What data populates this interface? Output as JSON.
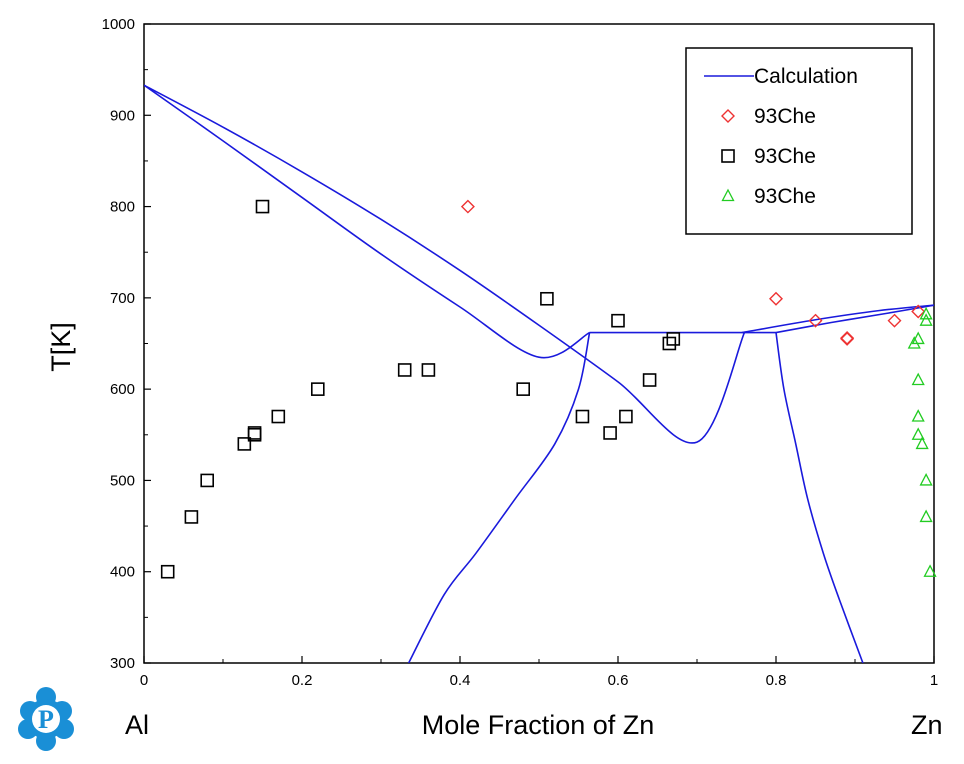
{
  "chart_data": {
    "type": "scatter",
    "xlabel": "Mole Fraction of Zn",
    "ylabel": "T[K]",
    "xlim": [
      0,
      1
    ],
    "ylim": [
      300,
      1000
    ],
    "xticks": [
      "0",
      "0.2",
      "0.4",
      "0.6",
      "0.8",
      "1"
    ],
    "yticks": [
      "300",
      "400",
      "500",
      "600",
      "700",
      "800",
      "900",
      "1000"
    ],
    "left_end_label": "Al",
    "right_end_label": "Zn",
    "grid": false,
    "legend_position": "top-right",
    "legend": [
      {
        "label": "Calculation",
        "marker": "line",
        "color": "#1a1adc"
      },
      {
        "label": "93Che",
        "marker": "diamond",
        "color": "#ee3333"
      },
      {
        "label": "93Che",
        "marker": "square",
        "color": "#000000"
      },
      {
        "label": "93Che",
        "marker": "triangle",
        "color": "#22cc22"
      }
    ],
    "series": [
      {
        "name": "Calculation",
        "kind": "line",
        "color": "#1a1adc",
        "curves": [
          [
            [
              0,
              933
            ],
            [
              0.1,
              887
            ],
            [
              0.2,
              838
            ],
            [
              0.3,
              786
            ],
            [
              0.4,
              730
            ],
            [
              0.5,
              670
            ],
            [
              0.6,
              608
            ],
            [
              0.7,
              542
            ],
            [
              0.76,
              662
            ]
          ],
          [
            [
              0,
              933
            ],
            [
              0.1,
              872
            ],
            [
              0.2,
              810
            ],
            [
              0.3,
              748
            ],
            [
              0.4,
              690
            ],
            [
              0.5,
              635
            ],
            [
              0.564,
              662
            ]
          ],
          [
            [
              0.564,
              662
            ],
            [
              0.757,
              662
            ],
            [
              0.8,
              662
            ]
          ],
          [
            [
              0.757,
              662
            ],
            [
              0.85,
              676
            ],
            [
              0.93,
              686
            ],
            [
              1,
              692
            ]
          ],
          [
            [
              0.8,
              662
            ],
            [
              0.87,
              673
            ],
            [
              0.94,
              683
            ],
            [
              1,
              692
            ]
          ],
          [
            [
              0.564,
              662
            ],
            [
              0.55,
              600
            ],
            [
              0.52,
              540
            ],
            [
              0.47,
              480
            ],
            [
              0.42,
              420
            ],
            [
              0.38,
              375
            ],
            [
              0.335,
              300
            ]
          ],
          [
            [
              0.8,
              662
            ],
            [
              0.81,
              600
            ],
            [
              0.825,
              540
            ],
            [
              0.84,
              480
            ],
            [
              0.86,
              420
            ],
            [
              0.88,
              370
            ],
            [
              0.91,
              300
            ]
          ]
        ]
      },
      {
        "name": "93Che",
        "kind": "points",
        "marker": "diamond",
        "color": "#ee3333",
        "points": [
          [
            0.41,
            800
          ],
          [
            0.8,
            699
          ],
          [
            0.85,
            675
          ],
          [
            0.89,
            655
          ],
          [
            0.89,
            656
          ],
          [
            0.95,
            675
          ],
          [
            0.98,
            685
          ]
        ]
      },
      {
        "name": "93Che",
        "kind": "points",
        "marker": "square",
        "color": "#000000",
        "points": [
          [
            0.03,
            400
          ],
          [
            0.06,
            460
          ],
          [
            0.08,
            500
          ],
          [
            0.127,
            540
          ],
          [
            0.14,
            550
          ],
          [
            0.14,
            552
          ],
          [
            0.17,
            570
          ],
          [
            0.15,
            800
          ],
          [
            0.22,
            600
          ],
          [
            0.33,
            621
          ],
          [
            0.36,
            621
          ],
          [
            0.48,
            600
          ],
          [
            0.51,
            699
          ],
          [
            0.555,
            570
          ],
          [
            0.59,
            552
          ],
          [
            0.6,
            675
          ],
          [
            0.61,
            570
          ],
          [
            0.64,
            610
          ],
          [
            0.665,
            650
          ],
          [
            0.67,
            655
          ]
        ]
      },
      {
        "name": "93Che",
        "kind": "points",
        "marker": "triangle",
        "color": "#22cc22",
        "points": [
          [
            0.995,
            400
          ],
          [
            0.99,
            460
          ],
          [
            0.99,
            500
          ],
          [
            0.985,
            540
          ],
          [
            0.98,
            550
          ],
          [
            0.98,
            570
          ],
          [
            0.98,
            610
          ],
          [
            0.975,
            650
          ],
          [
            0.98,
            655
          ],
          [
            0.99,
            675
          ],
          [
            0.99,
            682
          ]
        ]
      }
    ]
  },
  "logo": {
    "letter": "P",
    "color": "#1a8fd6"
  }
}
